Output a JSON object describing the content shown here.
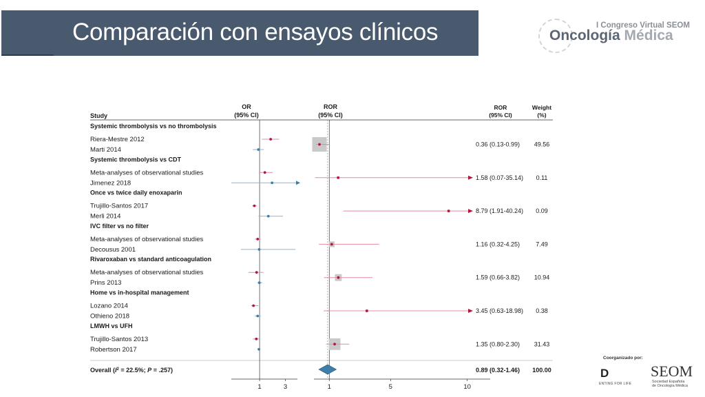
{
  "slide": {
    "title": "Comparación con ensayos clínicos"
  },
  "logo": {
    "congreso": "I Congreso Virtual SEOM",
    "brand_bold": "Oncología",
    "brand_light": "Médica"
  },
  "sponsor": {
    "label": "Coorganizado por:",
    "d_logo": "D",
    "d_sub": "ENTING FOR LIFE",
    "seom": "SEOM",
    "seom_line1": "Sociedad Española",
    "seom_line2": "de Oncología Médica"
  },
  "colors": {
    "magenta": "#b5153e",
    "blue": "#3e7ea6",
    "magenta_light": "#e28ca1",
    "blue_light": "#8fb5cd",
    "weight_box": "#c9c9c9",
    "diamond": "#3d7fa8"
  },
  "chart_data": {
    "type": "forest",
    "headers": {
      "study": "Study",
      "or_line1": "OR",
      "or_line2": "(95% CI)",
      "ror_line1": "ROR",
      "ror_line2": "(95% CI)",
      "ror_col_line1": "ROR",
      "ror_col_line2": "(95% CI)",
      "weight_line1": "Weight",
      "weight_line2": "(%)"
    },
    "or_axis": {
      "ticks": [
        1,
        3
      ],
      "range": [
        0.3,
        5
      ]
    },
    "ror_axis": {
      "ticks": [
        1,
        5,
        10
      ],
      "range": [
        0,
        11.5
      ]
    },
    "groups": [
      {
        "name": "Systemic thrombolysis vs no thrombolysis",
        "rows": [
          {
            "label": "Riera-Mestre 2012",
            "series": "magenta",
            "or": 1.6,
            "lo": 1.1,
            "hi": 2.3
          },
          {
            "label": "Marti 2014",
            "series": "blue",
            "or": 0.95,
            "lo": 0.75,
            "hi": 1.2
          }
        ],
        "ror": {
          "value": 0.36,
          "lo": 0.13,
          "hi": 0.99,
          "text": "0.36 (0.13-0.99)",
          "weight": 49.56,
          "weight_text": "49.56"
        }
      },
      {
        "name": "Systemic thrombolysis vs CDT",
        "rows": [
          {
            "label": "Meta-analyses of observational studies",
            "series": "magenta",
            "or": 1.25,
            "lo": 0.97,
            "hi": 1.75
          },
          {
            "label": "Jimenez 2018",
            "series": "blue",
            "or": 1.7,
            "lo": 0.3,
            "hi": 5,
            "arrow_right": true
          }
        ],
        "ror": {
          "value": 1.58,
          "lo": 0.07,
          "hi": 35.14,
          "text": "1.58 (0.07-35.14)",
          "weight": 0.11,
          "weight_text": "0.11"
        }
      },
      {
        "name": "Once vs twice daily enoxaparin",
        "rows": [
          {
            "label": "Trujillo-Santos 2017",
            "series": "magenta",
            "or": 0.8,
            "lo": 0.73,
            "hi": 0.88
          },
          {
            "label": "Merli 2014",
            "series": "blue",
            "or": 1.45,
            "lo": 0.95,
            "hi": 2.7
          }
        ],
        "ror": {
          "value": 8.79,
          "lo": 1.91,
          "hi": 40.24,
          "text": "8.79 (1.91-40.24)",
          "weight": 0.09,
          "weight_text": "0.09"
        }
      },
      {
        "name": "IVC filter vs no filter",
        "rows": [
          {
            "label": "Meta-analyses of observational studies",
            "series": "magenta",
            "or": 0.92,
            "lo": 0.82,
            "hi": 1.05
          },
          {
            "label": "Decousus 2001",
            "series": "blue",
            "or": 0.98,
            "lo": 0.45,
            "hi": 4.6
          }
        ],
        "ror": {
          "value": 1.16,
          "lo": 0.32,
          "hi": 4.25,
          "text": "1.16 (0.32-4.25)",
          "weight": 7.49,
          "weight_text": "7.49"
        }
      },
      {
        "name": "Rivaroxaban vs standard anticoagulation",
        "rows": [
          {
            "label": "Meta-analyses of observational studies",
            "series": "magenta",
            "or": 0.88,
            "lo": 0.62,
            "hi": 1.18
          },
          {
            "label": "Prins 2013",
            "series": "blue",
            "or": 0.99,
            "lo": 0.9,
            "hi": 1.12
          }
        ],
        "ror": {
          "value": 1.59,
          "lo": 0.66,
          "hi": 3.82,
          "text": "1.59 (0.66-3.82)",
          "weight": 10.94,
          "weight_text": "10.94"
        }
      },
      {
        "name": "Home vs in-hospital management",
        "rows": [
          {
            "label": "Lozano 2014",
            "series": "magenta",
            "or": 0.77,
            "lo": 0.7,
            "hi": 0.95
          },
          {
            "label": "Othieno 2018",
            "series": "blue",
            "or": 0.92,
            "lo": 0.82,
            "hi": 1.05
          }
        ],
        "ror": {
          "value": 3.45,
          "lo": 0.63,
          "hi": 18.98,
          "text": "3.45 (0.63-18.98)",
          "weight": 0.38,
          "weight_text": "0.38"
        }
      },
      {
        "name": "LMWH vs UFH",
        "rows": [
          {
            "label": "Trujillo-Santos 2013",
            "series": "magenta",
            "or": 0.87,
            "lo": 0.75,
            "hi": 0.98
          },
          {
            "label": "Robertson 2017",
            "series": "blue",
            "or": 0.97,
            "lo": 0.92,
            "hi": 1.04
          }
        ],
        "ror": {
          "value": 1.35,
          "lo": 0.8,
          "hi": 2.3,
          "text": "1.35 (0.80-2.30)",
          "weight": 31.43,
          "weight_text": "31.43"
        }
      }
    ],
    "overall": {
      "label_prefix": "Overall (",
      "label_i": "I",
      "label_sq": "2",
      "label_mid": " = 22.5%; ",
      "label_p": "P",
      "label_end": " = .257)",
      "value": 0.89,
      "lo": 0.32,
      "hi": 1.46,
      "text": "0.89 (0.32-1.46)",
      "weight_text": "100.00"
    }
  }
}
